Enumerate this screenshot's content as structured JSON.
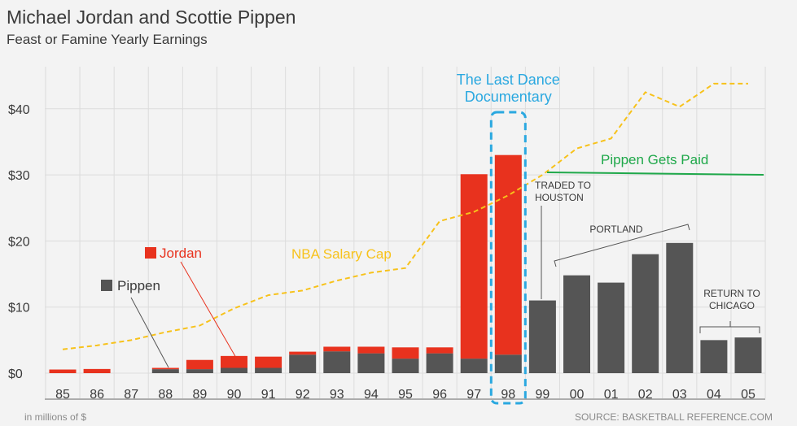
{
  "title": "Michael Jordan and Scottie Pippen",
  "subtitle": "Feast or Famine Yearly Earnings",
  "footer": {
    "units": "in millions of $",
    "source": "SOURCE: BASKETBALL REFERENCE.COM"
  },
  "colors": {
    "jordan": "#e8321e",
    "pippen": "#555555",
    "salary_cap": "#f7c21b",
    "highlight": "#2aa8e0",
    "pippen_paid": "#1fa84a",
    "grid": "#dcdcdc",
    "annotation": "#555555"
  },
  "chart_data": {
    "type": "bar",
    "stacked": true,
    "categories": [
      "85",
      "86",
      "87",
      "88",
      "89",
      "90",
      "91",
      "92",
      "93",
      "94",
      "95",
      "96",
      "97",
      "98",
      "99",
      "00",
      "01",
      "02",
      "03",
      "04",
      "05"
    ],
    "series": [
      {
        "name": "Pippen",
        "values": [
          0,
          0,
          0,
          0.6,
          0.6,
          0.8,
          0.8,
          2.8,
          3.3,
          3.0,
          2.2,
          3.0,
          2.2,
          2.8,
          11.0,
          14.8,
          13.7,
          18.0,
          19.7,
          5.0,
          5.4
        ]
      },
      {
        "name": "Jordan",
        "values": [
          0.55,
          0.63,
          0,
          0.2,
          1.4,
          1.8,
          1.7,
          0.45,
          0.7,
          1.0,
          1.7,
          0.9,
          27.9,
          30.2,
          0,
          0,
          0,
          0,
          0,
          0,
          0
        ]
      },
      {
        "name": "NBA Salary Cap",
        "type": "line",
        "values": [
          3.6,
          4.2,
          5.0,
          6.2,
          7.2,
          9.8,
          11.8,
          12.5,
          14.0,
          15.2,
          15.9,
          23.0,
          24.4,
          26.9,
          30.0,
          34.0,
          35.5,
          42.5,
          40.3,
          43.8,
          43.8
        ]
      }
    ],
    "ylim": [
      0,
      46
    ],
    "yticks": [
      0,
      10,
      20,
      30,
      40
    ],
    "ytick_labels": [
      "$0",
      "$10",
      "$20",
      "$30",
      "$40"
    ],
    "grid": true,
    "annotations": {
      "documentary": "The Last Dance Documentary",
      "documentary_line1": "The Last Dance",
      "documentary_line2": "Documentary",
      "pippen_paid": "Pippen Gets Paid",
      "traded_line1": "TRADED TO",
      "traded_line2": "HOUSTON",
      "portland": "PORTLAND",
      "return_line1": "RETURN TO",
      "return_line2": "CHICAGO",
      "legend_jordan": "Jordan",
      "legend_pippen": "Pippen",
      "salary_cap_label": "NBA Salary Cap"
    }
  }
}
